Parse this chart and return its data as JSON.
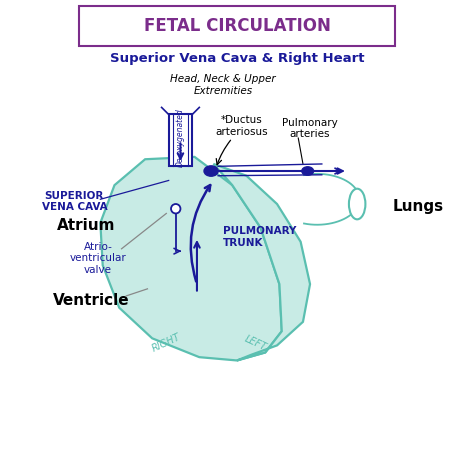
{
  "title": "FETAL CIRCULATION",
  "subtitle": "Superior Vena Cava & Right Heart",
  "head_label": "Head, Neck & Upper\nExtremities",
  "deoxygenated_label": "De-oxygenated",
  "superior_vena_cava_label": "SUPERIOR\nVENA CAVA",
  "ductus_label": "*Ductus\narteriosus",
  "pulmonary_art_label": "Pulmonary\narteries",
  "lungs_label": "Lungs",
  "atrium_label": "Atrium",
  "av_valve_label": "Atrio-\nventricular\nvalve",
  "ventricle_label": "Ventricle",
  "pulmonary_trunk_label": "PULMONARY\nTRUNK",
  "right_label": "RIGHT",
  "left_label": "LEFT",
  "title_color": "#7B2D8B",
  "subtitle_color": "#1a1a99",
  "body_color": "#1a1a99",
  "heart_fill": "#c8ebe5",
  "heart_stroke": "#5abfb0",
  "vessel_color": "#1a1a99",
  "bg_color": "#ffffff"
}
